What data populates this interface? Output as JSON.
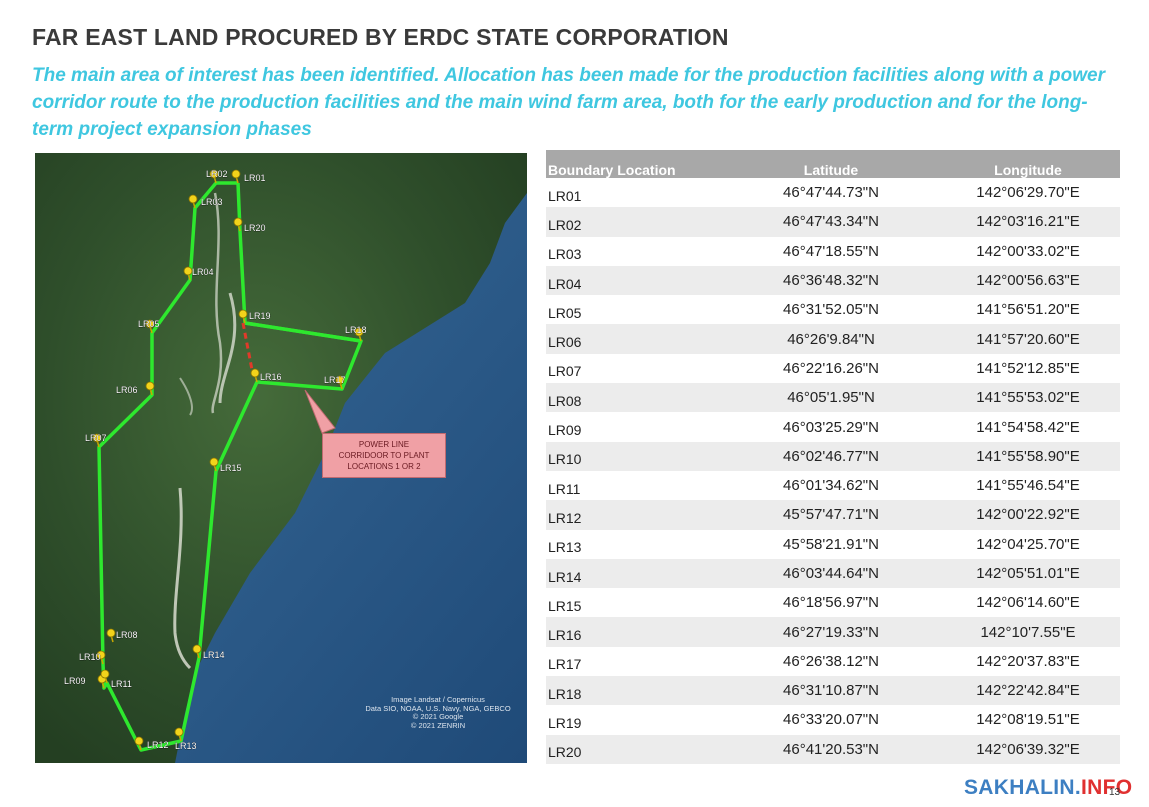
{
  "header": {
    "title": "FAR EAST LAND PROCURED BY ERDC STATE CORPORATION",
    "subtitle": "The main area of interest has been identified. Allocation has been made for the production facilities along with a power corridor route to the production facilities and the main wind farm area, both for the early production and for the long-term project expansion phases"
  },
  "map": {
    "markers": [
      {
        "id": "LR01",
        "label": "LR01"
      },
      {
        "id": "LR02",
        "label": "LR02"
      },
      {
        "id": "LR03",
        "label": "LR03"
      },
      {
        "id": "LR20",
        "label": "LR20"
      },
      {
        "id": "LR04",
        "label": "LR04"
      },
      {
        "id": "LR19",
        "label": "LR19"
      },
      {
        "id": "LR05",
        "label": "LR05"
      },
      {
        "id": "LR18",
        "label": "LR18"
      },
      {
        "id": "LR06",
        "label": "LR06"
      },
      {
        "id": "LR16",
        "label": "LR16"
      },
      {
        "id": "LR17",
        "label": "LR17"
      },
      {
        "id": "LR07",
        "label": "LR07"
      },
      {
        "id": "LR15",
        "label": "LR15"
      },
      {
        "id": "LR08",
        "label": "LR08"
      },
      {
        "id": "LR10",
        "label": "LR10"
      },
      {
        "id": "LR09",
        "label": "LR09"
      },
      {
        "id": "LR11",
        "label": "LR11"
      },
      {
        "id": "LR14",
        "label": "LR14"
      },
      {
        "id": "LR12",
        "label": "LR12"
      },
      {
        "id": "LR13",
        "label": "LR13"
      }
    ],
    "callout": [
      "POWER LINE",
      "CORRIDOOR TO PLANT",
      "LOCATIONS 1 OR 2"
    ],
    "credits": [
      "Image Landsat / Copernicus",
      "Data SIO, NOAA, U.S. Navy, NGA, GEBCO",
      "© 2021 Google",
      "© 2021 ZENRIN"
    ],
    "colors": {
      "boundary": "#2ee82e",
      "corridor": "#e03a2a",
      "marker": "#f2d31b",
      "sea": "#2d5a87",
      "land": "#2f4f2b"
    }
  },
  "table": {
    "headers": [
      "Boundary Location",
      "Latitude",
      "Longitude"
    ],
    "rows": [
      [
        "LR01",
        "46°47'44.73\"N",
        "142°06'29.70\"E"
      ],
      [
        "LR02",
        "46°47'43.34\"N",
        "142°03'16.21\"E"
      ],
      [
        "LR03",
        "46°47'18.55\"N",
        "142°00'33.02\"E"
      ],
      [
        "LR04",
        "46°36'48.32\"N",
        "142°00'56.63\"E"
      ],
      [
        "LR05",
        "46°31'52.05\"N",
        "141°56'51.20\"E"
      ],
      [
        "LR06",
        "46°26'9.84\"N",
        "141°57'20.60\"E"
      ],
      [
        "LR07",
        "46°22'16.26\"N",
        "141°52'12.85\"E"
      ],
      [
        "LR08",
        "46°05'1.95\"N",
        "141°55'53.02\"E"
      ],
      [
        "LR09",
        "46°03'25.29\"N",
        "141°54'58.42\"E"
      ],
      [
        "LR10",
        "46°02'46.77\"N",
        "141°55'58.90\"E"
      ],
      [
        "LR11",
        "46°01'34.62\"N",
        "141°55'46.54\"E"
      ],
      [
        "LR12",
        "45°57'47.71\"N",
        "142°00'22.92\"E"
      ],
      [
        "LR13",
        "45°58'21.91\"N",
        "142°04'25.70\"E"
      ],
      [
        "LR14",
        "46°03'44.64\"N",
        "142°05'51.01\"E"
      ],
      [
        "LR15",
        "46°18'56.97\"N",
        "142°06'14.60\"E"
      ],
      [
        "LR16",
        "46°27'19.33\"N",
        "142°10'7.55\"E"
      ],
      [
        "LR17",
        "46°26'38.12\"N",
        "142°20'37.83\"E"
      ],
      [
        "LR18",
        "46°31'10.87\"N",
        "142°22'42.84\"E"
      ],
      [
        "LR19",
        "46°33'20.07\"N",
        "142°08'19.51\"E"
      ],
      [
        "LR20",
        "46°41'20.53\"N",
        "142°06'39.32\"E"
      ]
    ]
  },
  "footer": {
    "brand_a": "SAKHALIN.",
    "brand_b": "INFO",
    "page_number": "13",
    "colors": {
      "brand_a": "#3d7fc2",
      "brand_b": "#e03030"
    }
  }
}
